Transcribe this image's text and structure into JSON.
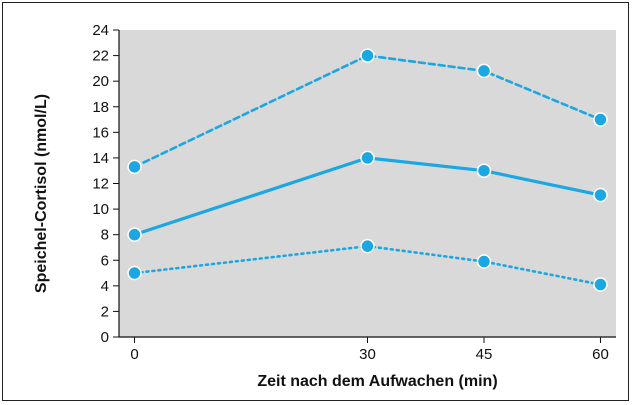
{
  "chart_data": {
    "type": "line",
    "xlabel": "Zeit nach dem Aufwachen (min)",
    "ylabel": "Speichel-Cortisol (nmol/L)",
    "x": [
      0,
      30,
      45,
      60
    ],
    "xticks": [
      "0",
      "30",
      "45",
      "60"
    ],
    "xlim": [
      -2,
      62
    ],
    "ylim": [
      0,
      24
    ],
    "yticks": [
      0,
      2,
      4,
      6,
      8,
      10,
      12,
      14,
      16,
      18,
      20,
      22,
      24
    ],
    "grid": false,
    "plot_background": "#d9d9d9",
    "series": [
      {
        "style": "dashed",
        "color": "#1ba7e1",
        "values": [
          13.3,
          22,
          20.8,
          17
        ]
      },
      {
        "style": "solid",
        "color": "#1ba7e1",
        "values": [
          8,
          14,
          13,
          11.1
        ]
      },
      {
        "style": "dotted",
        "color": "#1ba7e1",
        "values": [
          5,
          7.1,
          5.9,
          4.1
        ]
      }
    ]
  }
}
